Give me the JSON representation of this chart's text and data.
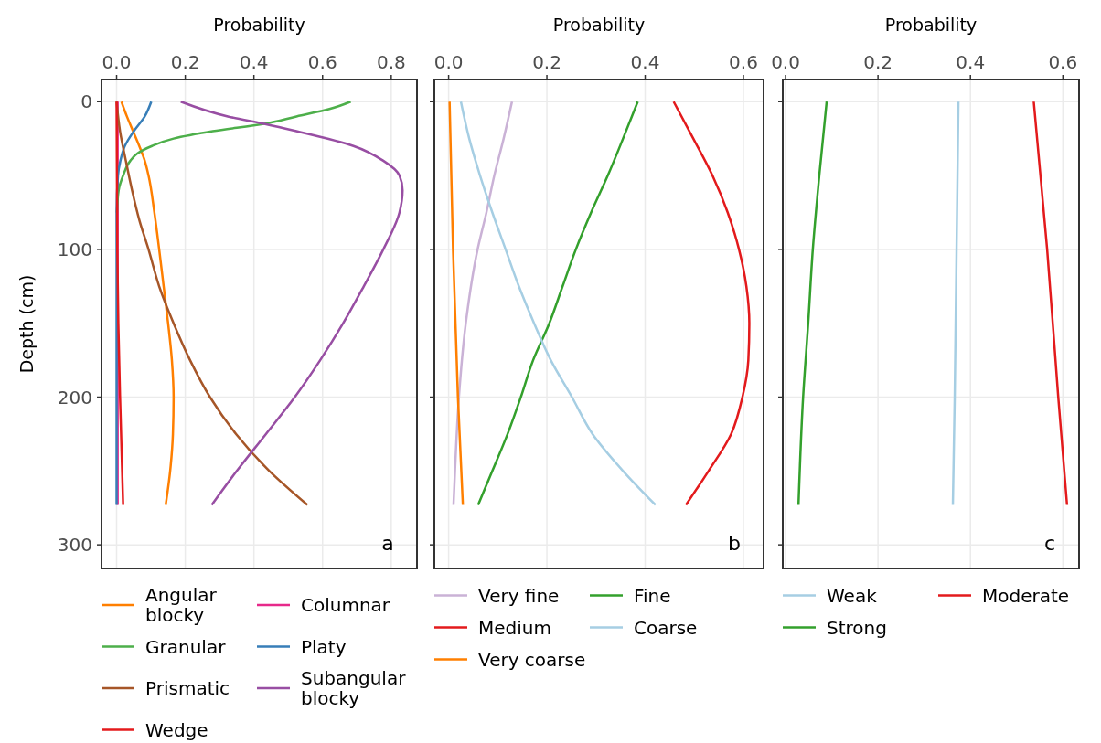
{
  "chart_data": [
    {
      "type": "line",
      "xlabel": "Probability",
      "ylabel": "Depth (cm)",
      "xlim": [
        -0.044,
        0.875
      ],
      "xticks": [
        {
          "value": 0,
          "label": "0.0"
        },
        {
          "value": 0.2,
          "label": "0.2"
        },
        {
          "value": 0.4,
          "label": "0.4"
        },
        {
          "value": 0.6,
          "label": "0.6"
        },
        {
          "value": 0.8,
          "label": "0.8"
        }
      ],
      "ylim": [
        316,
        -15
      ],
      "yticks": [
        0,
        100,
        200,
        300
      ],
      "grid": true,
      "legend": "bottom",
      "annotations": [
        "a"
      ],
      "series": [
        {
          "name": "Angular blocky",
          "color": "#ff7f00",
          "x": [
            0.014,
            0.03,
            0.048,
            0.066,
            0.082,
            0.093,
            0.11,
            0.124,
            0.137,
            0.15,
            0.161,
            0.166,
            0.164,
            0.156,
            0.143
          ],
          "values": [
            0,
            10,
            20,
            30,
            40,
            50,
            75,
            100,
            125,
            150,
            175,
            200,
            225,
            250,
            273
          ]
        },
        {
          "name": "Columnar",
          "color": "#e7298a",
          "x": [
            0.003,
            0.003,
            0.003,
            0.003
          ],
          "values": [
            0,
            100,
            200,
            273
          ]
        },
        {
          "name": "Granular",
          "color": "#4daf4a",
          "x": [
            0.682,
            0.62,
            0.524,
            0.43,
            0.28,
            0.166,
            0.103,
            0.061,
            0.04,
            0.019,
            0.006,
            0.001
          ],
          "values": [
            0,
            5,
            10,
            15,
            20,
            25,
            30,
            35,
            40,
            50,
            60,
            75
          ]
        },
        {
          "name": "Platy",
          "color": "#377eb8",
          "x": [
            0.101,
            0.082,
            0.05,
            0.024,
            0.011,
            0.004,
            0,
            0,
            0
          ],
          "values": [
            0,
            10,
            20,
            30,
            40,
            50,
            75,
            150,
            273
          ]
        },
        {
          "name": "Prismatic",
          "color": "#a65628",
          "x": [
            0,
            0.01,
            0.027,
            0.045,
            0.066,
            0.093,
            0.124,
            0.166,
            0.214,
            0.272,
            0.348,
            0.445,
            0.556
          ],
          "values": [
            0,
            20,
            40,
            60,
            80,
            100,
            125,
            150,
            175,
            200,
            225,
            250,
            273
          ]
        },
        {
          "name": "Subangular blocky",
          "color": "#984ea3",
          "x": [
            0.187,
            0.324,
            0.43,
            0.524,
            0.69,
            0.777,
            0.824,
            0.833,
            0.824,
            0.777,
            0.72,
            0.66,
            0.593,
            0.519,
            0.435,
            0.35,
            0.277
          ],
          "values": [
            0,
            10,
            15,
            20,
            30,
            40,
            50,
            60,
            75,
            100,
            125,
            150,
            175,
            200,
            225,
            250,
            273
          ]
        },
        {
          "name": "Wedge",
          "color": "#e41a1c",
          "x": [
            0,
            0.002,
            0.005,
            0.01,
            0.019
          ],
          "values": [
            0,
            100,
            150,
            200,
            273
          ]
        }
      ]
    },
    {
      "type": "line",
      "xlabel": "Probability",
      "xlim": [
        -0.029,
        0.641
      ],
      "xticks": [
        {
          "value": 0,
          "label": "0.0"
        },
        {
          "value": 0.2,
          "label": "0.2"
        },
        {
          "value": 0.4,
          "label": "0.4"
        },
        {
          "value": 0.6,
          "label": "0.6"
        }
      ],
      "ylim": [
        316,
        -15
      ],
      "yticks": [
        0,
        100,
        200,
        300
      ],
      "tick_labels": "x",
      "grid": true,
      "legend": "bottom",
      "annotations": [
        "b"
      ],
      "series": [
        {
          "name": "Very fine",
          "color": "#cab2d6",
          "x": [
            0.129,
            0.112,
            0.093,
            0.077,
            0.059,
            0.035,
            0.021,
            0.013,
            0.01
          ],
          "values": [
            0,
            25,
            50,
            75,
            100,
            150,
            200,
            250,
            273
          ]
        },
        {
          "name": "Fine",
          "color": "#33a02c",
          "x": [
            0.385,
            0.355,
            0.324,
            0.29,
            0.259,
            0.232,
            0.205,
            0.172,
            0.147,
            0.12,
            0.089,
            0.06
          ],
          "values": [
            0,
            25,
            50,
            75,
            100,
            125,
            150,
            175,
            200,
            225,
            250,
            273
          ]
        },
        {
          "name": "Medium",
          "color": "#e31a1c",
          "x": [
            0.458,
            0.498,
            0.537,
            0.568,
            0.591,
            0.606,
            0.612,
            0.61,
            0.598,
            0.575,
            0.529,
            0.483
          ],
          "values": [
            0,
            25,
            50,
            75,
            100,
            125,
            150,
            175,
            200,
            225,
            250,
            273
          ]
        },
        {
          "name": "Coarse",
          "color": "#a6cee3",
          "x": [
            0.025,
            0.042,
            0.064,
            0.089,
            0.116,
            0.143,
            0.174,
            0.208,
            0.251,
            0.293,
            0.355,
            0.421
          ],
          "values": [
            0,
            25,
            50,
            75,
            100,
            125,
            150,
            175,
            200,
            225,
            250,
            273
          ]
        },
        {
          "name": "Very coarse",
          "color": "#ff7f00",
          "x": [
            0.002,
            0.009,
            0.019,
            0.029
          ],
          "values": [
            0,
            100,
            200,
            273
          ]
        }
      ]
    },
    {
      "type": "line",
      "xlabel": "Probability",
      "xlim": [
        -0.006,
        0.635
      ],
      "xticks": [
        {
          "value": 0,
          "label": "0.0"
        },
        {
          "value": 0.2,
          "label": "0.2"
        },
        {
          "value": 0.4,
          "label": "0.4"
        },
        {
          "value": 0.6,
          "label": "0.6"
        }
      ],
      "ylim": [
        316,
        -15
      ],
      "yticks": [
        0,
        100,
        200,
        300
      ],
      "tick_labels": "x",
      "grid": true,
      "legend": "bottom",
      "annotations": [
        "c"
      ],
      "series": [
        {
          "name": "Weak",
          "color": "#a6cee3",
          "x": [
            0.374,
            0.37,
            0.366,
            0.362
          ],
          "values": [
            0,
            100,
            200,
            273
          ]
        },
        {
          "name": "Moderate",
          "color": "#e31a1c",
          "x": [
            0.537,
            0.566,
            0.59,
            0.609
          ],
          "values": [
            0,
            100,
            200,
            273
          ]
        },
        {
          "name": "Strong",
          "color": "#33a02c",
          "x": [
            0.089,
            0.073,
            0.059,
            0.049,
            0.038,
            0.028
          ],
          "values": [
            0,
            50,
            100,
            150,
            200,
            273
          ]
        }
      ]
    }
  ]
}
